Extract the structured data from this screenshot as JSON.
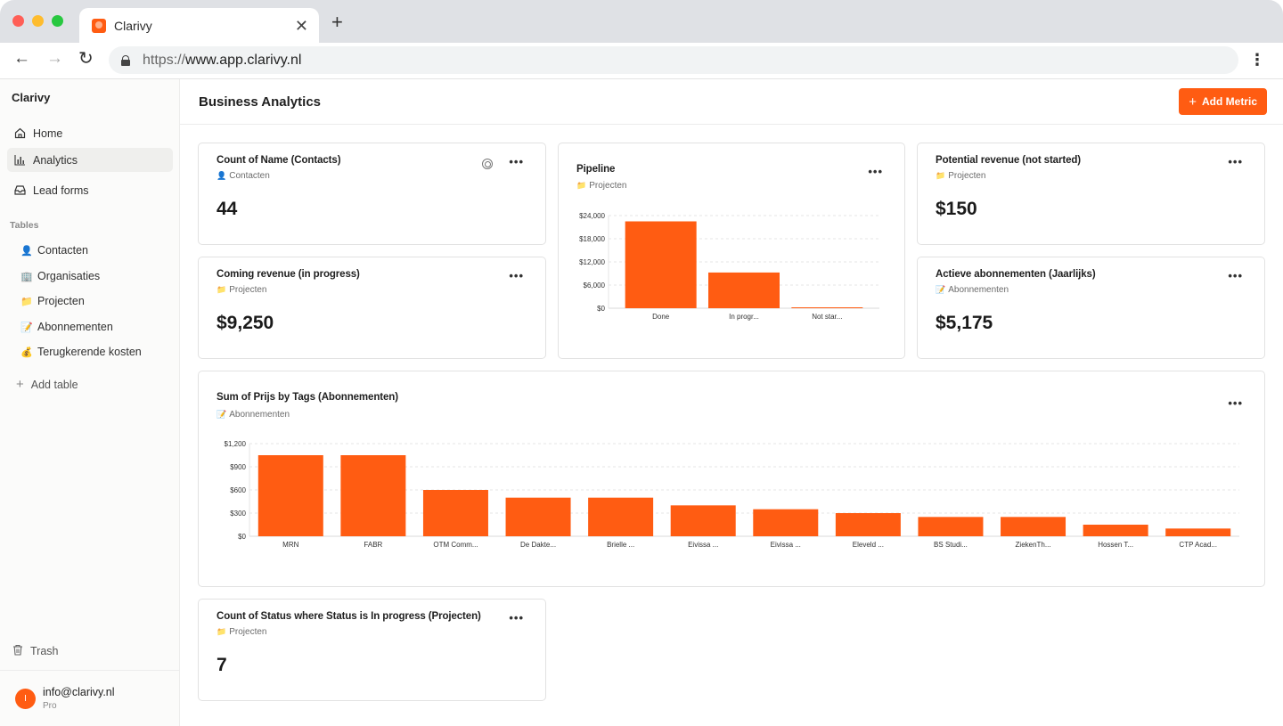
{
  "browser": {
    "tab_title": "Clarivy",
    "url_scheme": "https://",
    "url_host": "www.app.clarivy.nl",
    "new_tab": "+",
    "close": "✕"
  },
  "sidebar": {
    "workspace": "Clarivy",
    "nav": [
      {
        "label": "Home",
        "icon": "home-icon"
      },
      {
        "label": "Analytics",
        "icon": "bar-chart-icon",
        "active": true
      },
      {
        "label": "Lead forms",
        "icon": "inbox-icon"
      }
    ],
    "tables_heading": "Tables",
    "tables": [
      {
        "label": "Contacten",
        "emoji": "👤"
      },
      {
        "label": "Organisaties",
        "emoji": "🏢"
      },
      {
        "label": "Projecten",
        "emoji": "📁"
      },
      {
        "label": "Abonnementen",
        "emoji": "📝"
      },
      {
        "label": "Terugkerende kosten",
        "emoji": "💰"
      }
    ],
    "add_table": "Add table",
    "trash": "Trash",
    "user": {
      "initial": "I",
      "email": "info@clarivy.nl",
      "plan": "Pro"
    }
  },
  "header": {
    "title": "Business Analytics",
    "add_metric": "Add Metric"
  },
  "cards": {
    "contacts_count": {
      "title": "Count of Name (Contacts)",
      "source": "Contacten",
      "emoji": "👤",
      "value": "44"
    },
    "coming_revenue": {
      "title": "Coming revenue (in progress)",
      "source": "Projecten",
      "emoji": "📁",
      "value": "$9,250"
    },
    "pipeline": {
      "title": "Pipeline",
      "source": "Projecten",
      "emoji": "📁"
    },
    "potential_revenue": {
      "title": "Potential revenue (not started)",
      "source": "Projecten",
      "emoji": "📁",
      "value": "$150"
    },
    "active_subscriptions": {
      "title": "Actieve abonnementen (Jaarlijks)",
      "source": "Abonnementen",
      "emoji": "📝",
      "value": "$5,175"
    },
    "prijs_by_tags": {
      "title": "Sum of Prijs by Tags (Abonnementen)",
      "source": "Abonnementen",
      "emoji": "📝"
    },
    "status_count": {
      "title": "Count of Status where Status is In progress (Projecten)",
      "source": "Projecten",
      "emoji": "📁",
      "value": "7"
    },
    "more": "•••"
  },
  "chart_data": [
    {
      "type": "bar",
      "title": "Pipeline",
      "categories": [
        "Done",
        "In progr...",
        "Not star..."
      ],
      "values": [
        22500,
        9250,
        150
      ],
      "yticks": [
        "$0",
        "$6,000",
        "$12,000",
        "$18,000",
        "$24,000"
      ],
      "ylim": [
        0,
        24000
      ],
      "color": "#ff5c12",
      "grid": true
    },
    {
      "type": "bar",
      "title": "Sum of Prijs by Tags (Abonnementen)",
      "categories": [
        "MRN",
        "FABR",
        "OTM Comm...",
        "De Dakte...",
        "Brielle ...",
        "Eivissa ...",
        "Eivissa ...",
        "Eleveld ...",
        "BS Studi...",
        "ZiekenTh...",
        "Hossen T...",
        "CTP Acad..."
      ],
      "values": [
        1050,
        1050,
        600,
        500,
        500,
        400,
        350,
        300,
        250,
        250,
        150,
        100
      ],
      "yticks": [
        "$0",
        "$300",
        "$600",
        "$900",
        "$1,200"
      ],
      "ylim": [
        0,
        1200
      ],
      "color": "#ff5c12",
      "grid": true
    }
  ]
}
